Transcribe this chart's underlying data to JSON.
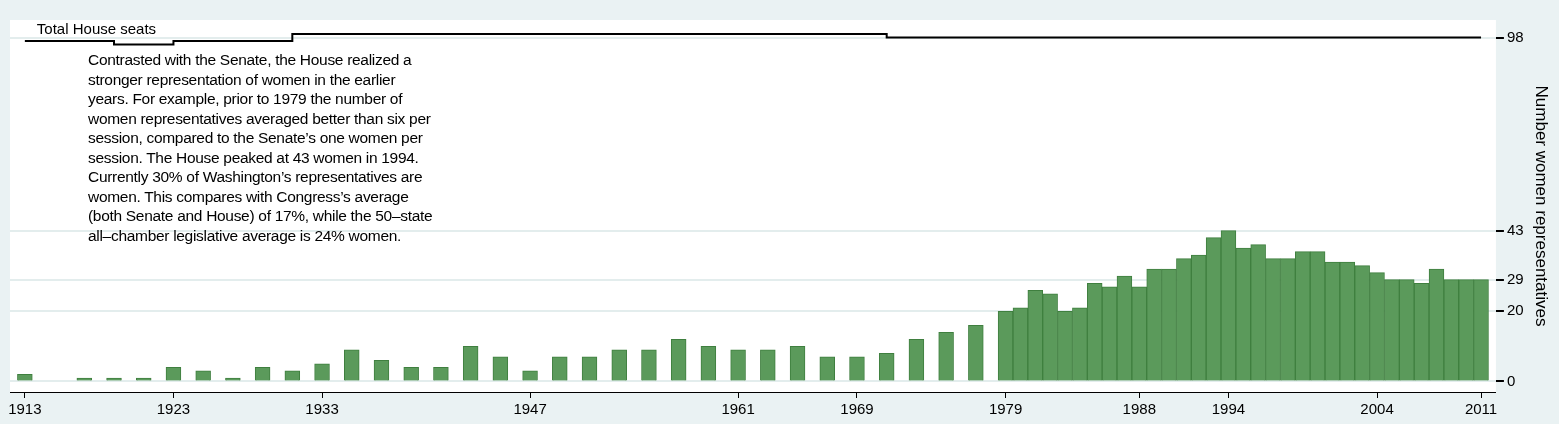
{
  "chart_data": {
    "type": "bar",
    "x": [
      1913,
      1915,
      1917,
      1919,
      1921,
      1923,
      1925,
      1927,
      1929,
      1931,
      1933,
      1935,
      1937,
      1939,
      1941,
      1943,
      1945,
      1947,
      1949,
      1951,
      1953,
      1955,
      1957,
      1959,
      1961,
      1963,
      1965,
      1967,
      1969,
      1971,
      1973,
      1975,
      1977,
      1979,
      1980,
      1981,
      1982,
      1983,
      1984,
      1985,
      1986,
      1987,
      1988,
      1989,
      1990,
      1991,
      1992,
      1993,
      1994,
      1995,
      1996,
      1997,
      1998,
      1999,
      2000,
      2001,
      2002,
      2003,
      2004,
      2005,
      2006,
      2007,
      2008,
      2009,
      2010,
      2011
    ],
    "series": [
      {
        "color": "#5b9a5b",
        "values": [
          2,
          0,
          1,
          1,
          1,
          4,
          3,
          1,
          4,
          3,
          5,
          9,
          6,
          4,
          4,
          10,
          7,
          3,
          7,
          7,
          9,
          9,
          12,
          10,
          9,
          9,
          10,
          7,
          7,
          8,
          12,
          14,
          16,
          20,
          21,
          26,
          25,
          20,
          21,
          28,
          27,
          30,
          27,
          32,
          32,
          35,
          36,
          41,
          43,
          38,
          39,
          35,
          35,
          37,
          37,
          34,
          34,
          33,
          31,
          29,
          29,
          28,
          32,
          29,
          29,
          29
        ]
      },
      {
        "type": "step",
        "name": "Total House seats",
        "color": "#000000",
        "values": [
          97,
          97,
          97,
          97,
          96,
          96,
          97,
          97,
          97,
          97,
          99,
          99,
          99,
          99,
          99,
          99,
          99,
          99,
          99,
          99,
          99,
          99,
          99,
          99,
          99,
          99,
          99,
          99,
          99,
          99,
          98,
          98,
          98,
          98,
          98,
          98,
          98,
          98,
          98,
          98,
          98,
          98,
          98,
          98,
          98,
          98,
          98,
          98,
          98,
          98,
          98,
          98,
          98,
          98,
          98,
          98,
          98,
          98,
          98,
          98,
          98,
          98,
          98,
          98,
          98,
          98
        ]
      }
    ],
    "ylabel": "Number women representatives",
    "xlim": [
      1912,
      2012
    ],
    "xticks": [
      1913,
      1923,
      1933,
      1947,
      1961,
      1969,
      1979,
      1988,
      1994,
      2004,
      2011
    ],
    "ylim": [
      -3,
      103
    ],
    "yticks": [
      0,
      20,
      29,
      43,
      98
    ],
    "grid": "y",
    "legend": false,
    "annotations": [
      "Contrasted with the Senate, the House realized a\nstronger representation of women in the earlier\nyears. For example, prior to 1979 the number of\nwomen representatives averaged better than six per\nsession, compared to the Senate’s one women per\nsession. The House peaked at 43 women in 1994.\nCurrently 30% of Washington’s representatives are\nwomen. This compares with Congress’s average\n(both Senate and House) of 17%, while the 50–state\nall–chamber legislative average is 24% women."
    ]
  }
}
